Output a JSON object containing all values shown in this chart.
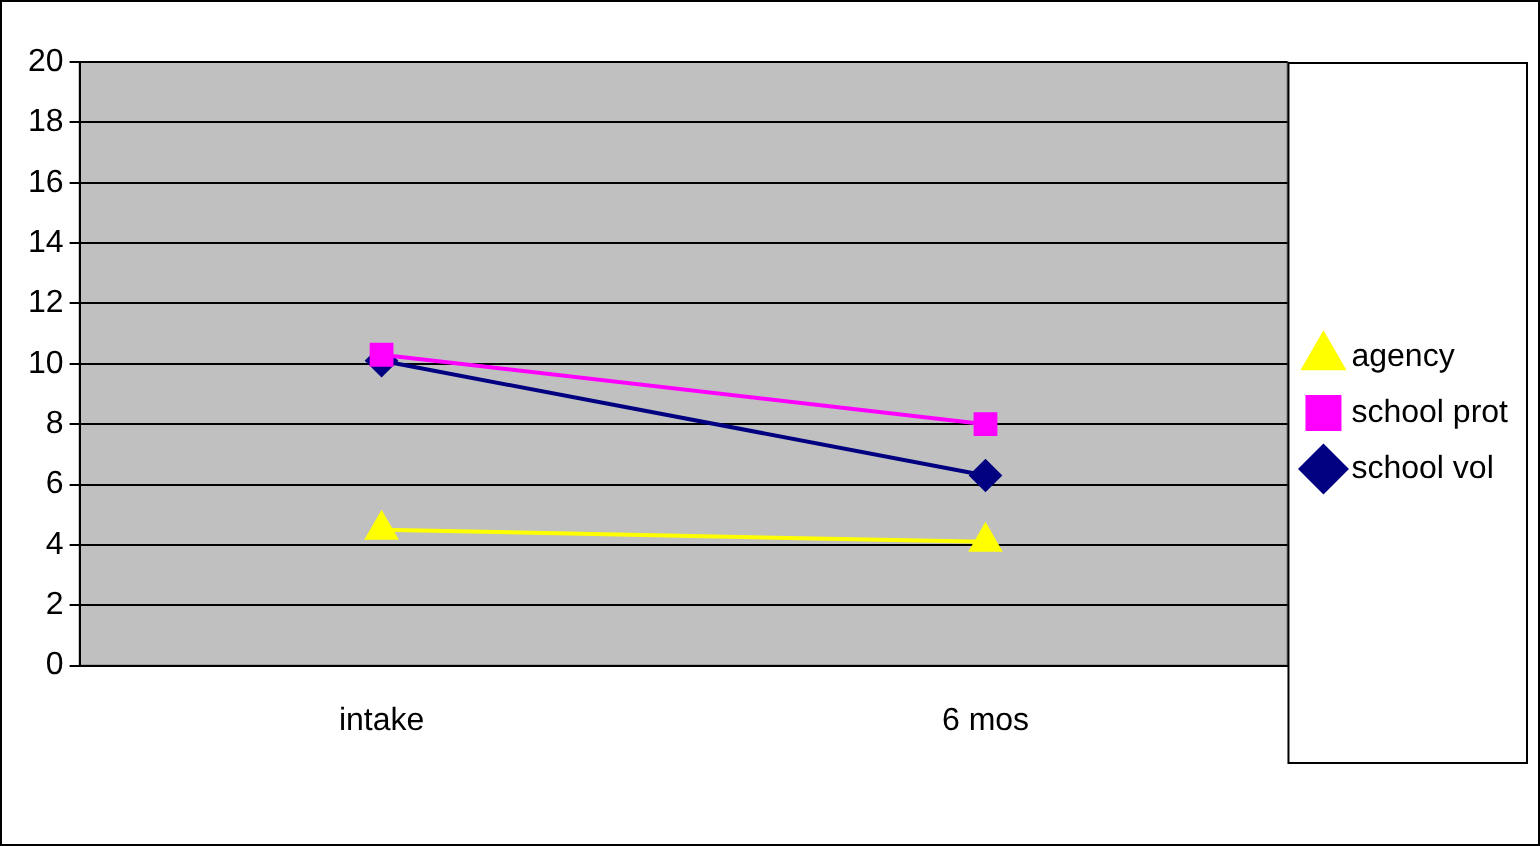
{
  "chart_data": {
    "type": "line",
    "categories": [
      "intake",
      "6 mos"
    ],
    "series": [
      {
        "name": "school vol",
        "color": "#000080",
        "marker": "diamond",
        "values": [
          10.1,
          6.3
        ]
      },
      {
        "name": "school prot",
        "color": "#ff00ff",
        "marker": "square",
        "values": [
          10.3,
          8.0
        ]
      },
      {
        "name": "agency",
        "color": "#ffff00",
        "marker": "triangle",
        "values": [
          4.5,
          4.1
        ]
      }
    ],
    "ylim": [
      0,
      20
    ],
    "yticks": [
      0,
      2,
      4,
      6,
      8,
      10,
      12,
      14,
      16,
      18,
      20
    ],
    "grid": "y",
    "legend": "right"
  }
}
